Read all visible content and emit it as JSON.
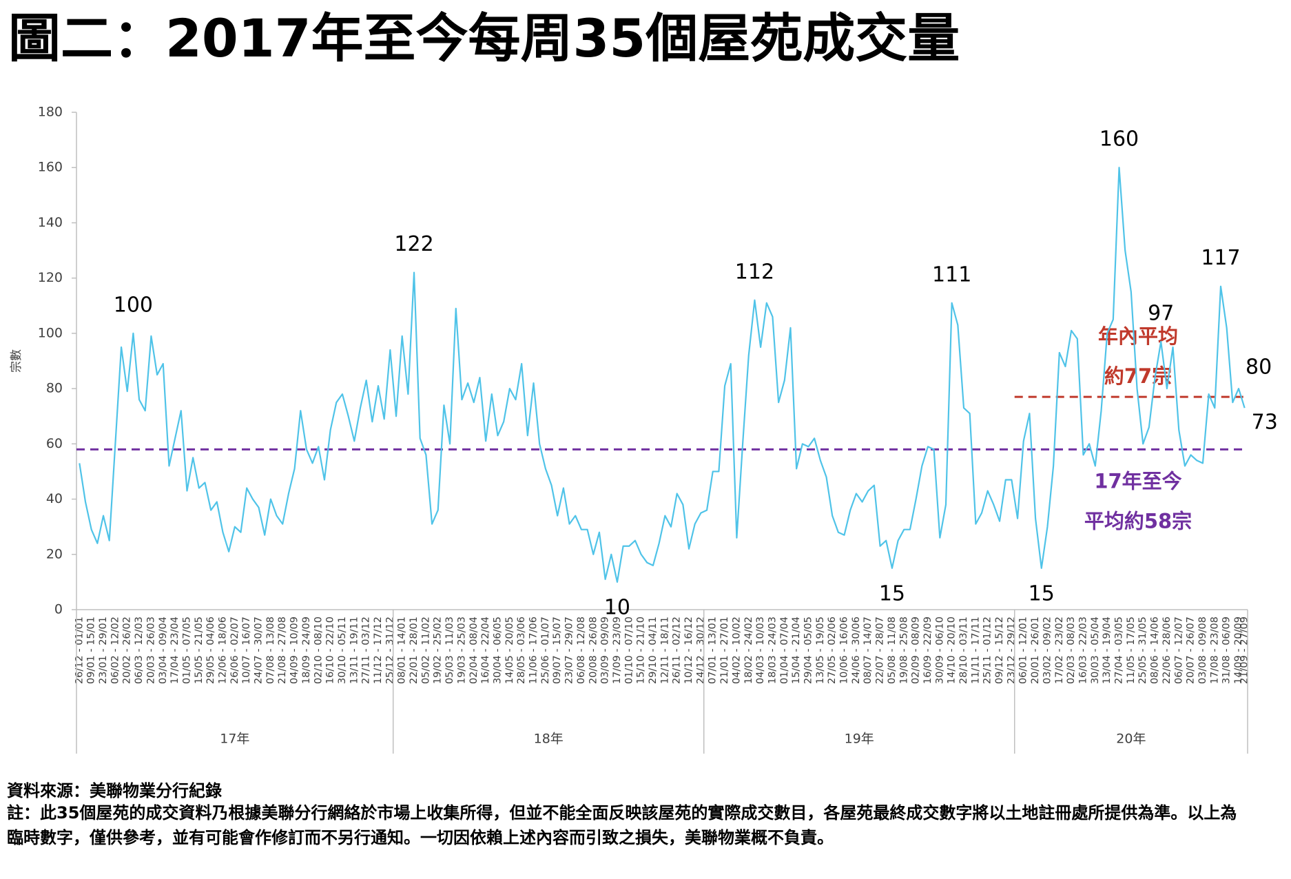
{
  "chart_data": {
    "type": "line",
    "title": "圖二：2017年至今每周35個屋苑成交量",
    "y_label": "宗數",
    "color": "#4fc3e8",
    "ylim": [
      0,
      180
    ],
    "yticks": [
      0,
      20,
      40,
      60,
      80,
      100,
      120,
      140,
      160,
      180
    ],
    "categories": [
      "26/12 - 01/01",
      null,
      "09/01 - 15/01",
      null,
      "23/01 - 29/01",
      null,
      "06/02 - 12/02",
      null,
      "20/02 - 26/02",
      null,
      "06/03 - 12/03",
      null,
      "20/03 - 26/03",
      null,
      "03/04 - 09/04",
      null,
      "17/04 - 23/04",
      null,
      "01/05 - 07/05",
      null,
      "15/05 - 21/05",
      null,
      "29/05 - 04/06",
      null,
      "12/06 - 18/06",
      null,
      "26/06 - 02/07",
      null,
      "10/07 - 16/07",
      null,
      "24/07 - 30/07",
      null,
      "07/08 - 13/08",
      null,
      "21/08 - 27/08",
      null,
      "04/09 - 10/09",
      null,
      "18/09 - 24/09",
      null,
      "02/10 - 08/10",
      null,
      "16/10 - 22/10",
      null,
      "30/10 - 05/11",
      null,
      "13/11 - 19/11",
      null,
      "27/11 - 03/12",
      null,
      "11/12 - 17/12",
      null,
      "25/12 - 31/12",
      null,
      "08/01 - 14/01",
      null,
      "22/01 - 28/01",
      null,
      "05/02 - 11/02",
      null,
      "19/02 - 25/02",
      null,
      "05/03 - 11/03",
      null,
      "19/03 - 25/03",
      null,
      "02/04 - 08/04",
      null,
      "16/04 - 22/04",
      null,
      "30/04 - 06/05",
      null,
      "14/05 - 20/05",
      null,
      "28/05 - 03/06",
      null,
      "11/06 - 17/06",
      null,
      "25/06 - 01/07",
      null,
      "09/07 - 15/07",
      null,
      "23/07 - 29/07",
      null,
      "06/08 - 12/08",
      null,
      "20/08 - 26/08",
      null,
      "03/09 - 09/09",
      null,
      "17/09 - 23/09",
      null,
      "01/10 - 07/10",
      null,
      "15/10 - 21/10",
      null,
      "29/10 - 04/11",
      null,
      "12/11 - 18/11",
      null,
      "26/11 - 02/12",
      null,
      "10/12 - 16/12",
      null,
      "24/12 - 30/12",
      null,
      "07/01 - 13/01",
      null,
      "21/01 - 27/01",
      null,
      "04/02 - 10/02",
      null,
      "18/02 - 24/02",
      null,
      "04/03 - 10/03",
      null,
      "18/03 - 24/03",
      null,
      "01/04 - 07/04",
      null,
      "15/04 - 21/04",
      null,
      "29/04 - 05/05",
      null,
      "13/05 - 19/05",
      null,
      "27/05 - 02/06",
      null,
      "10/06 - 16/06",
      null,
      "24/06 - 30/06",
      null,
      "08/07 - 14/07",
      null,
      "22/07 - 28/07",
      null,
      "05/08 - 11/08",
      null,
      "19/08 - 25/08",
      null,
      "02/09 - 08/09",
      null,
      "16/09 - 22/09",
      null,
      "30/09 - 06/10",
      null,
      "14/10 - 20/10",
      null,
      "28/10 - 03/11",
      null,
      "11/11 - 17/11",
      null,
      "25/11 - 01/12",
      null,
      "09/12 - 15/12",
      null,
      "23/12 - 29/12",
      null,
      "06/01 - 12/01",
      null,
      "20/01 - 26/01",
      null,
      "03/02 - 09/02",
      null,
      "17/02 - 23/02",
      null,
      "02/03 - 08/03",
      null,
      "16/03 - 22/03",
      null,
      "30/03 - 05/04",
      null,
      "13/04 - 19/04",
      null,
      "27/04 - 03/05",
      null,
      "11/05 - 17/05",
      null,
      "25/05 - 31/05",
      null,
      "08/06 - 14/06",
      null,
      "22/06 - 28/06",
      null,
      "06/07 - 12/07",
      null,
      "20/07 - 26/07",
      null,
      "03/08 - 09/08",
      null,
      "17/08 - 23/08",
      null,
      "31/08 - 06/09",
      null,
      "14/09 - 20/09",
      "21/09 - 27/09"
    ],
    "values": [
      53,
      39,
      29,
      24,
      34,
      25,
      60,
      95,
      79,
      100,
      76,
      72,
      99,
      85,
      89,
      52,
      62,
      72,
      43,
      55,
      44,
      46,
      36,
      39,
      28,
      21,
      30,
      28,
      44,
      40,
      37,
      27,
      40,
      34,
      31,
      42,
      51,
      72,
      58,
      53,
      59,
      47,
      65,
      75,
      78,
      70,
      61,
      73,
      83,
      68,
      81,
      69,
      94,
      70,
      99,
      78,
      122,
      62,
      56,
      31,
      36,
      74,
      60,
      109,
      76,
      82,
      75,
      84,
      61,
      78,
      63,
      68,
      80,
      76,
      89,
      63,
      82,
      60,
      51,
      45,
      34,
      44,
      31,
      34,
      29,
      29,
      20,
      28,
      11,
      20,
      10,
      23,
      23,
      25,
      20,
      17,
      16,
      24,
      34,
      30,
      42,
      38,
      22,
      31,
      35,
      36,
      50,
      50,
      81,
      89,
      26,
      60,
      92,
      112,
      95,
      111,
      106,
      75,
      83,
      102,
      51,
      60,
      59,
      62,
      54,
      48,
      34,
      28,
      27,
      36,
      42,
      39,
      43,
      45,
      23,
      25,
      15,
      25,
      29,
      29,
      40,
      52,
      59,
      58,
      26,
      38,
      111,
      103,
      73,
      71,
      31,
      35,
      43,
      38,
      32,
      47,
      47,
      33,
      61,
      71,
      33,
      15,
      30,
      52,
      93,
      88,
      101,
      98,
      56,
      60,
      52,
      72,
      100,
      105,
      160,
      130,
      115,
      80,
      60,
      66,
      84,
      97,
      80,
      95,
      65,
      52,
      56,
      54,
      53,
      78,
      73,
      117,
      102,
      75,
      80,
      73
    ],
    "value_labels": [
      null,
      null,
      null,
      null,
      null,
      null,
      null,
      null,
      null,
      "100",
      null,
      null,
      null,
      null,
      null,
      null,
      null,
      null,
      null,
      null,
      null,
      null,
      null,
      null,
      null,
      null,
      null,
      null,
      null,
      null,
      null,
      null,
      null,
      null,
      null,
      null,
      null,
      null,
      null,
      null,
      null,
      null,
      null,
      null,
      null,
      null,
      null,
      null,
      null,
      null,
      null,
      null,
      null,
      null,
      null,
      null,
      "122",
      null,
      null,
      null,
      null,
      null,
      null,
      null,
      null,
      null,
      null,
      null,
      null,
      null,
      null,
      null,
      null,
      null,
      null,
      null,
      null,
      null,
      null,
      null,
      null,
      null,
      null,
      null,
      null,
      null,
      null,
      null,
      null,
      null,
      "10",
      null,
      null,
      null,
      null,
      null,
      null,
      null,
      null,
      null,
      null,
      null,
      null,
      null,
      null,
      null,
      null,
      null,
      null,
      null,
      null,
      null,
      null,
      "112",
      null,
      null,
      null,
      null,
      null,
      null,
      null,
      null,
      null,
      null,
      null,
      null,
      null,
      null,
      null,
      null,
      null,
      null,
      null,
      null,
      null,
      null,
      "15",
      null,
      null,
      null,
      null,
      null,
      null,
      null,
      null,
      null,
      "111",
      null,
      null,
      null,
      null,
      null,
      null,
      null,
      null,
      null,
      null,
      null,
      null,
      null,
      null,
      "15",
      null,
      null,
      null,
      null,
      null,
      null,
      null,
      null,
      null,
      null,
      null,
      null,
      "160",
      null,
      null,
      null,
      null,
      null,
      null,
      "97",
      null,
      null,
      null,
      null,
      null,
      null,
      null,
      null,
      null,
      "117",
      null,
      null,
      "80",
      "73"
    ],
    "x_groups": [
      {
        "label": "17年",
        "size": 53
      },
      {
        "label": "18年",
        "size": 52
      },
      {
        "label": "19年",
        "size": 52
      },
      {
        "label": "20年",
        "size": 39
      }
    ],
    "reference_lines": [
      {
        "value": 58,
        "color": "#7030a0",
        "label": [
          "17年至今",
          "平均約58宗"
        ]
      },
      {
        "value": 77,
        "color": "#c0392b",
        "label": [
          "年內平均",
          "約77宗"
        ],
        "span": "20年"
      }
    ]
  },
  "notes": {
    "source": "資料來源：美聯物業分行紀錄",
    "note": "註：此35個屋苑的成交資料乃根據美聯分行網絡於市場上收集所得，但並不能全面反映該屋苑的實際成交數目，各屋苑最終成交數字將以土地註冊處所提供為準。以上為臨時數字，僅供參考，並有可能會作修訂而不另行通知。一切因依賴上述內容而引致之損失，美聯物業概不負責。"
  }
}
